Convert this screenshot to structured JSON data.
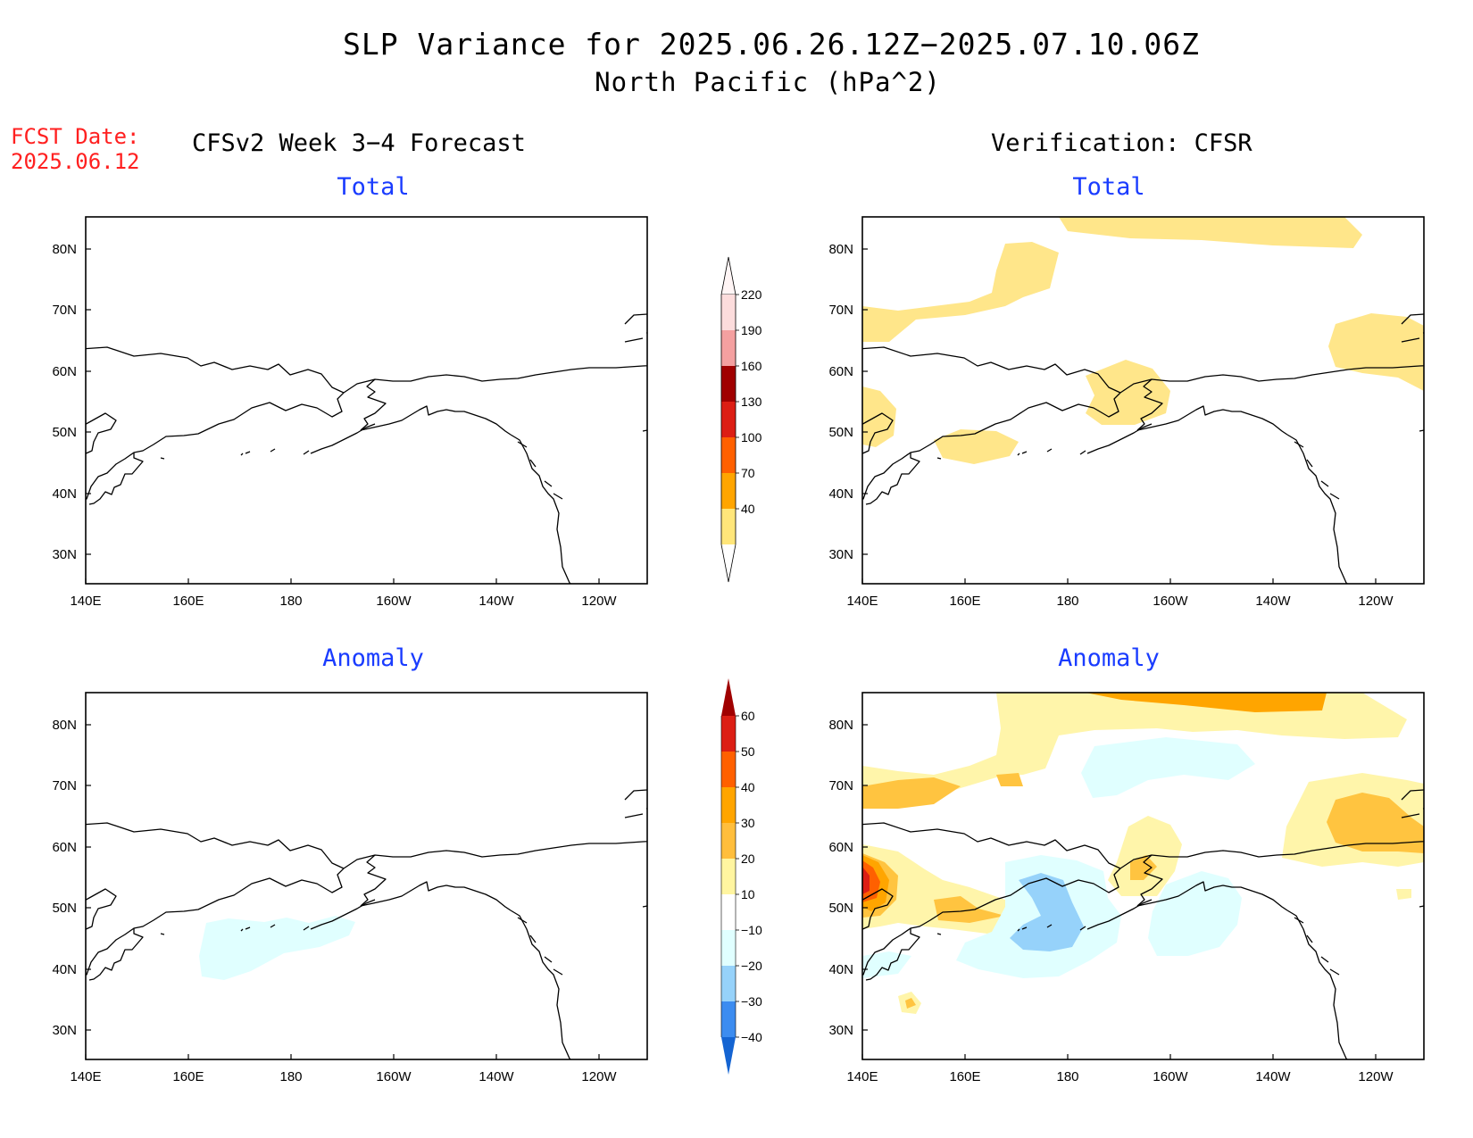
{
  "header": {
    "title_line1": "SLP Variance for 2025.06.26.12Z−2025.07.10.06Z",
    "title_line2": "North Pacific (hPa^2)",
    "fcst_label": "FCST Date:",
    "fcst_date": "2025.06.12",
    "left_column_title": "CFSv2 Week 3−4 Forecast",
    "right_column_title": "Verification: CFSR"
  },
  "panels": {
    "top_left": {
      "title": "Total"
    },
    "top_right": {
      "title": "Total"
    },
    "bottom_left": {
      "title": "Anomaly"
    },
    "bottom_right": {
      "title": "Anomaly"
    }
  },
  "axes": {
    "x_ticks": [
      "140E",
      "160E",
      "180",
      "160W",
      "140W",
      "120W"
    ],
    "y_ticks": [
      "80N",
      "70N",
      "60N",
      "50N",
      "40N",
      "30N"
    ]
  },
  "colorbars": {
    "total": {
      "levels": [
        "220",
        "190",
        "160",
        "130",
        "100",
        "70",
        "40"
      ],
      "colors": [
        "#fcdcdc",
        "#f4a0a0",
        "#a00000",
        "#dc1e14",
        "#ff6000",
        "#ffa500",
        "#ffe67a"
      ]
    },
    "anomaly": {
      "levels": [
        "60",
        "50",
        "40",
        "30",
        "20",
        "10",
        "−10",
        "−20",
        "−30",
        "−40"
      ],
      "colors": [
        "#a00000",
        "#dc1e14",
        "#ff6000",
        "#ffa500",
        "#ffbe3c",
        "#fff5a0",
        "#ffffff",
        "#e0ffff",
        "#96d2fa",
        "#3c8cf0",
        "#1464d2"
      ]
    }
  },
  "map_colors": {
    "coast": "#000000",
    "total_40_70": "#ffe68a",
    "anom_10_20": "#fff5aa",
    "anom_20_30": "#ffc440",
    "anom_30_40": "#ffa500",
    "anom_40_50": "#ff6000",
    "anom_50_60": "#dc1e14",
    "anom_neg_10_20": "#e0ffff",
    "anom_neg_20_30": "#96d2fa"
  }
}
